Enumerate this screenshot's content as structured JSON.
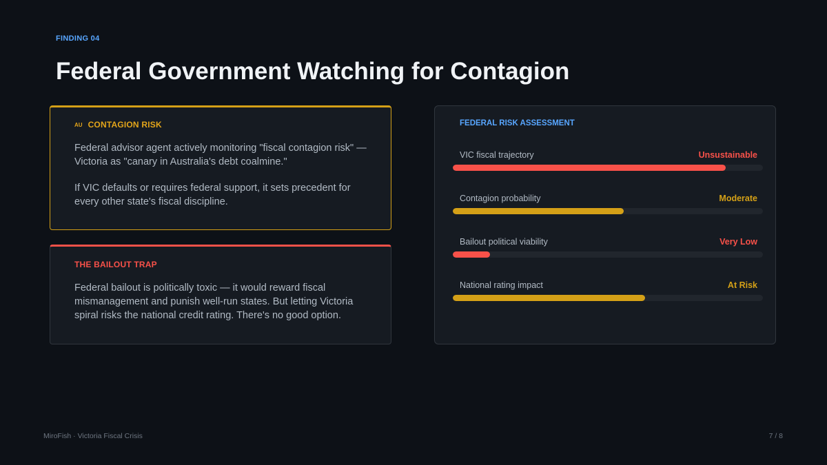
{
  "slide": {
    "eyebrow": "FINDING 04",
    "title": "Federal Government Watching for Contagion"
  },
  "colors": {
    "accent_blue": "#58a6ff",
    "amber": "#d4a017",
    "red": "#f85149",
    "background": "#0d1117",
    "card": "#161b22"
  },
  "contagion_card": {
    "flag": "AU",
    "heading": "CONTAGION RISK",
    "paragraph1": "Federal advisor agent actively monitoring \"fiscal contagion risk\" — Victoria as \"canary in Australia's debt coalmine.\"",
    "paragraph2": "If VIC defaults or requires federal support, it sets precedent for every other state's fiscal discipline."
  },
  "bailout_card": {
    "heading": "THE BAILOUT TRAP",
    "paragraph": "Federal bailout is politically toxic — it would reward fiscal mismanagement and punish well-run states. But letting Victoria spiral risks the national credit rating. There's no good option."
  },
  "risk_assessment": {
    "heading": "FEDERAL RISK ASSESSMENT",
    "items": [
      {
        "label": "VIC fiscal trajectory",
        "value": "Unsustainable",
        "level": 0.88,
        "color": "#f85149"
      },
      {
        "label": "Contagion probability",
        "value": "Moderate",
        "level": 0.55,
        "color": "#d4a017"
      },
      {
        "label": "Bailout political viability",
        "value": "Very Low",
        "level": 0.12,
        "color": "#f85149"
      },
      {
        "label": "National rating impact",
        "value": "At Risk",
        "level": 0.62,
        "color": "#d4a017"
      }
    ]
  },
  "footer": {
    "source": "MiroFish · Victoria Fiscal Crisis",
    "page": "7 / 8"
  }
}
